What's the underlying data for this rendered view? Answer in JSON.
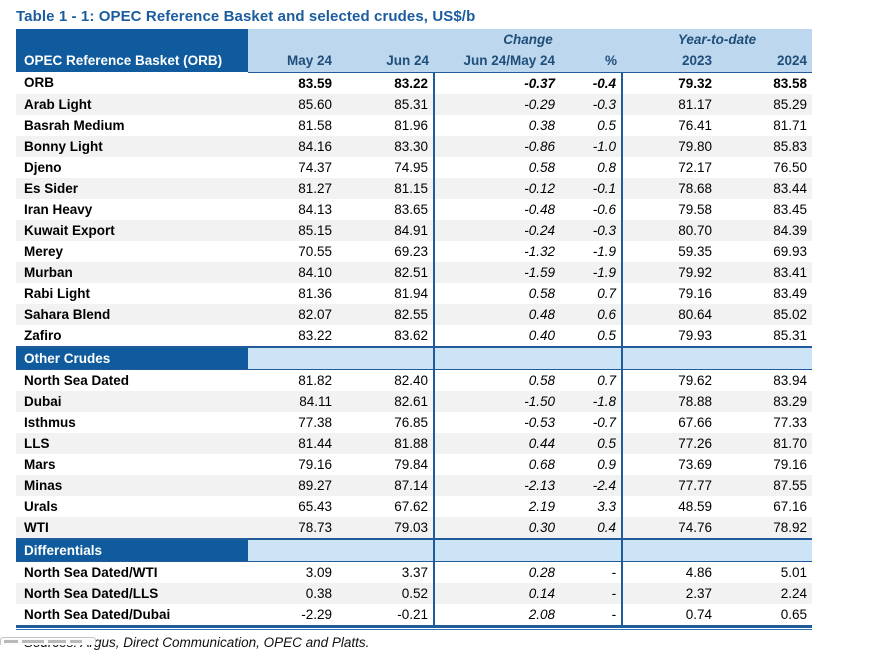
{
  "title": "Table 1 - 1: OPEC Reference Basket and selected crudes, US$/b",
  "colors": {
    "dark_blue": "#0F5B9D",
    "light_blue": "#BDD7EE",
    "band_blue": "#CDE4F6",
    "header_text": "#1F4E79",
    "line_blue": "#1F5C99",
    "stripe": "#F2F2F2",
    "title_blue": "#1B5C9E"
  },
  "table": {
    "corner_label": "OPEC Reference Basket (ORB)",
    "group_change": "Change",
    "group_ytd": "Year-to-date",
    "columns": [
      "May 24",
      "Jun 24",
      "Jun 24/May 24",
      "%",
      "2023",
      "2024"
    ],
    "sections": [
      {
        "header": null,
        "rows": [
          {
            "label": "ORB",
            "bold": true,
            "values": [
              "83.59",
              "83.22",
              "-0.37",
              "-0.4",
              "79.32",
              "83.58"
            ]
          },
          {
            "label": "Arab Light",
            "values": [
              "85.60",
              "85.31",
              "-0.29",
              "-0.3",
              "81.17",
              "85.29"
            ]
          },
          {
            "label": "Basrah Medium",
            "values": [
              "81.58",
              "81.96",
              "0.38",
              "0.5",
              "76.41",
              "81.71"
            ]
          },
          {
            "label": "Bonny Light",
            "values": [
              "84.16",
              "83.30",
              "-0.86",
              "-1.0",
              "79.80",
              "85.83"
            ]
          },
          {
            "label": "Djeno",
            "values": [
              "74.37",
              "74.95",
              "0.58",
              "0.8",
              "72.17",
              "76.50"
            ]
          },
          {
            "label": "Es Sider",
            "values": [
              "81.27",
              "81.15",
              "-0.12",
              "-0.1",
              "78.68",
              "83.44"
            ]
          },
          {
            "label": "Iran Heavy",
            "values": [
              "84.13",
              "83.65",
              "-0.48",
              "-0.6",
              "79.58",
              "83.45"
            ]
          },
          {
            "label": "Kuwait Export",
            "values": [
              "85.15",
              "84.91",
              "-0.24",
              "-0.3",
              "80.70",
              "84.39"
            ]
          },
          {
            "label": "Merey",
            "values": [
              "70.55",
              "69.23",
              "-1.32",
              "-1.9",
              "59.35",
              "69.93"
            ]
          },
          {
            "label": "Murban",
            "values": [
              "84.10",
              "82.51",
              "-1.59",
              "-1.9",
              "79.92",
              "83.41"
            ]
          },
          {
            "label": "Rabi Light",
            "values": [
              "81.36",
              "81.94",
              "0.58",
              "0.7",
              "79.16",
              "83.49"
            ]
          },
          {
            "label": "Sahara Blend",
            "values": [
              "82.07",
              "82.55",
              "0.48",
              "0.6",
              "80.64",
              "85.02"
            ]
          },
          {
            "label": "Zafiro",
            "values": [
              "83.22",
              "83.62",
              "0.40",
              "0.5",
              "79.93",
              "85.31"
            ]
          }
        ]
      },
      {
        "header": "Other Crudes",
        "rows": [
          {
            "label": "North Sea Dated",
            "values": [
              "81.82",
              "82.40",
              "0.58",
              "0.7",
              "79.62",
              "83.94"
            ]
          },
          {
            "label": "Dubai",
            "values": [
              "84.11",
              "82.61",
              "-1.50",
              "-1.8",
              "78.88",
              "83.29"
            ]
          },
          {
            "label": "Isthmus",
            "values": [
              "77.38",
              "76.85",
              "-0.53",
              "-0.7",
              "67.66",
              "77.33"
            ]
          },
          {
            "label": "LLS",
            "values": [
              "81.44",
              "81.88",
              "0.44",
              "0.5",
              "77.26",
              "81.70"
            ]
          },
          {
            "label": "Mars",
            "values": [
              "79.16",
              "79.84",
              "0.68",
              "0.9",
              "73.69",
              "79.16"
            ]
          },
          {
            "label": "Minas",
            "values": [
              "89.27",
              "87.14",
              "-2.13",
              "-2.4",
              "77.77",
              "87.55"
            ]
          },
          {
            "label": "Urals",
            "values": [
              "65.43",
              "67.62",
              "2.19",
              "3.3",
              "48.59",
              "67.16"
            ]
          },
          {
            "label": "WTI",
            "values": [
              "78.73",
              "79.03",
              "0.30",
              "0.4",
              "74.76",
              "78.92"
            ]
          }
        ]
      },
      {
        "header": "Differentials",
        "rows": [
          {
            "label": "North Sea Dated/WTI",
            "values": [
              "3.09",
              "3.37",
              "0.28",
              "-",
              "4.86",
              "5.01"
            ]
          },
          {
            "label": "North Sea Dated/LLS",
            "values": [
              "0.38",
              "0.52",
              "0.14",
              "-",
              "2.37",
              "2.24"
            ]
          },
          {
            "label": "North Sea Dated/Dubai",
            "values": [
              "-2.29",
              "-0.21",
              "2.08",
              "-",
              "0.74",
              "0.65"
            ]
          }
        ]
      }
    ]
  },
  "footer": {
    "sources": "Sources:  Argus, Direct Communication, OPEC and Platts."
  }
}
